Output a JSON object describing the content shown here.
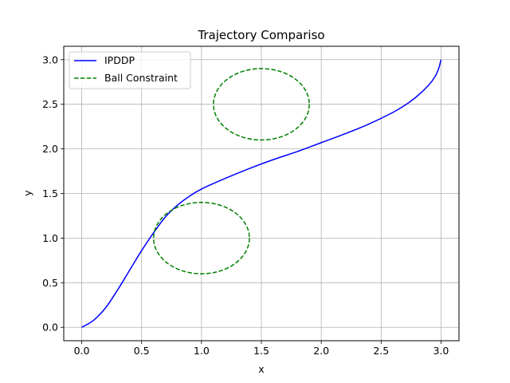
{
  "chart_data": {
    "type": "line",
    "title": "Trajectory Compariso",
    "xlabel": "x",
    "ylabel": "y",
    "xlim": [
      -0.15,
      3.15
    ],
    "ylim": [
      -0.15,
      3.15
    ],
    "grid": true,
    "legend_placement": "upper-left",
    "x_ticks": [
      0.0,
      0.5,
      1.0,
      1.5,
      2.0,
      2.5,
      3.0
    ],
    "x_tick_labels": [
      "0.0",
      "0.5",
      "1.0",
      "1.5",
      "2.0",
      "2.5",
      "3.0"
    ],
    "y_ticks": [
      0.0,
      0.5,
      1.0,
      1.5,
      2.0,
      2.5,
      3.0
    ],
    "y_tick_labels": [
      "0.0",
      "0.5",
      "1.0",
      "1.5",
      "2.0",
      "2.5",
      "3.0"
    ],
    "series": [
      {
        "name": "IPDDP",
        "style": "solid",
        "color": "#0000ff",
        "points": [
          [
            0.0,
            0.0
          ],
          [
            0.1,
            0.08
          ],
          [
            0.2,
            0.22
          ],
          [
            0.3,
            0.42
          ],
          [
            0.4,
            0.64
          ],
          [
            0.5,
            0.86
          ],
          [
            0.6,
            1.06
          ],
          [
            0.7,
            1.24
          ],
          [
            0.8,
            1.37
          ],
          [
            0.9,
            1.47
          ],
          [
            1.0,
            1.55
          ],
          [
            1.2,
            1.67
          ],
          [
            1.4,
            1.78
          ],
          [
            1.6,
            1.88
          ],
          [
            1.8,
            1.97
          ],
          [
            2.0,
            2.07
          ],
          [
            2.2,
            2.17
          ],
          [
            2.4,
            2.28
          ],
          [
            2.6,
            2.41
          ],
          [
            2.7,
            2.49
          ],
          [
            2.8,
            2.59
          ],
          [
            2.9,
            2.72
          ],
          [
            2.95,
            2.81
          ],
          [
            2.98,
            2.9
          ],
          [
            3.0,
            3.0
          ]
        ]
      },
      {
        "name": "Ball Constraint",
        "style": "dashed",
        "color": "#008000",
        "circles": [
          {
            "cx": 1.0,
            "cy": 1.0,
            "r": 0.4
          },
          {
            "cx": 1.5,
            "cy": 2.5,
            "r": 0.4
          }
        ]
      }
    ]
  }
}
